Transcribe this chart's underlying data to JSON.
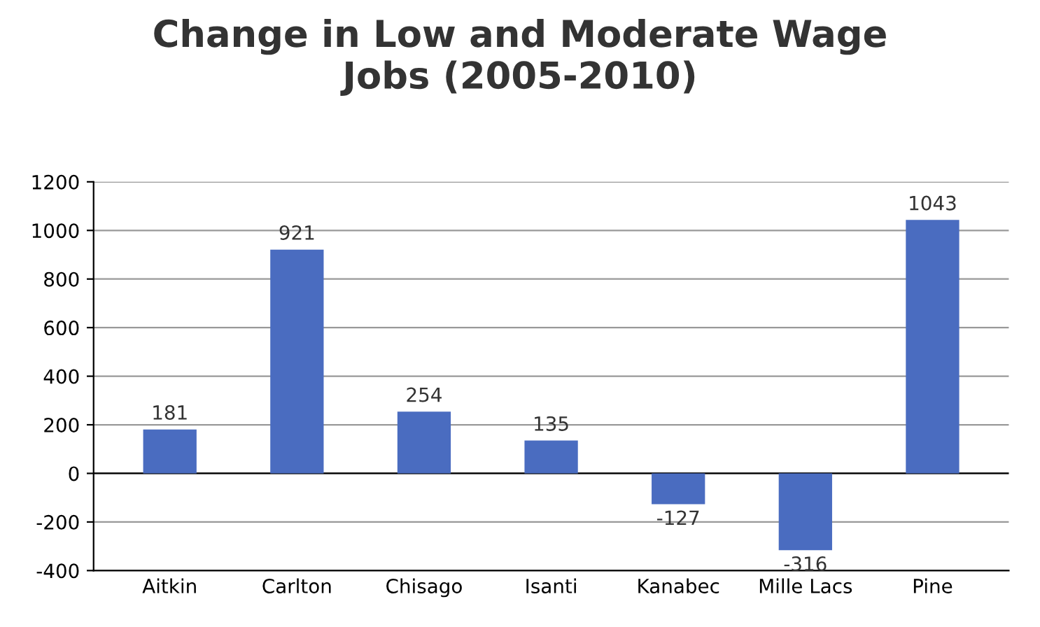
{
  "chart_data": {
    "type": "bar",
    "title": "Change in Low and Moderate Wage\nJobs (2005-2010)",
    "categories": [
      "Aitkin",
      "Carlton",
      "Chisago",
      "Isanti",
      "Kanabec",
      "Mille Lacs",
      "Pine"
    ],
    "series": [
      {
        "color": "#4a6cc0",
        "values": [
          181,
          921,
          254,
          135,
          -127,
          -316,
          1043
        ]
      }
    ],
    "ylim": [
      -400,
      1200
    ],
    "yticks": [
      -400,
      -200,
      0,
      200,
      400,
      600,
      800,
      1000,
      1200
    ],
    "grid": "y",
    "data_labels": true,
    "legend": false
  }
}
